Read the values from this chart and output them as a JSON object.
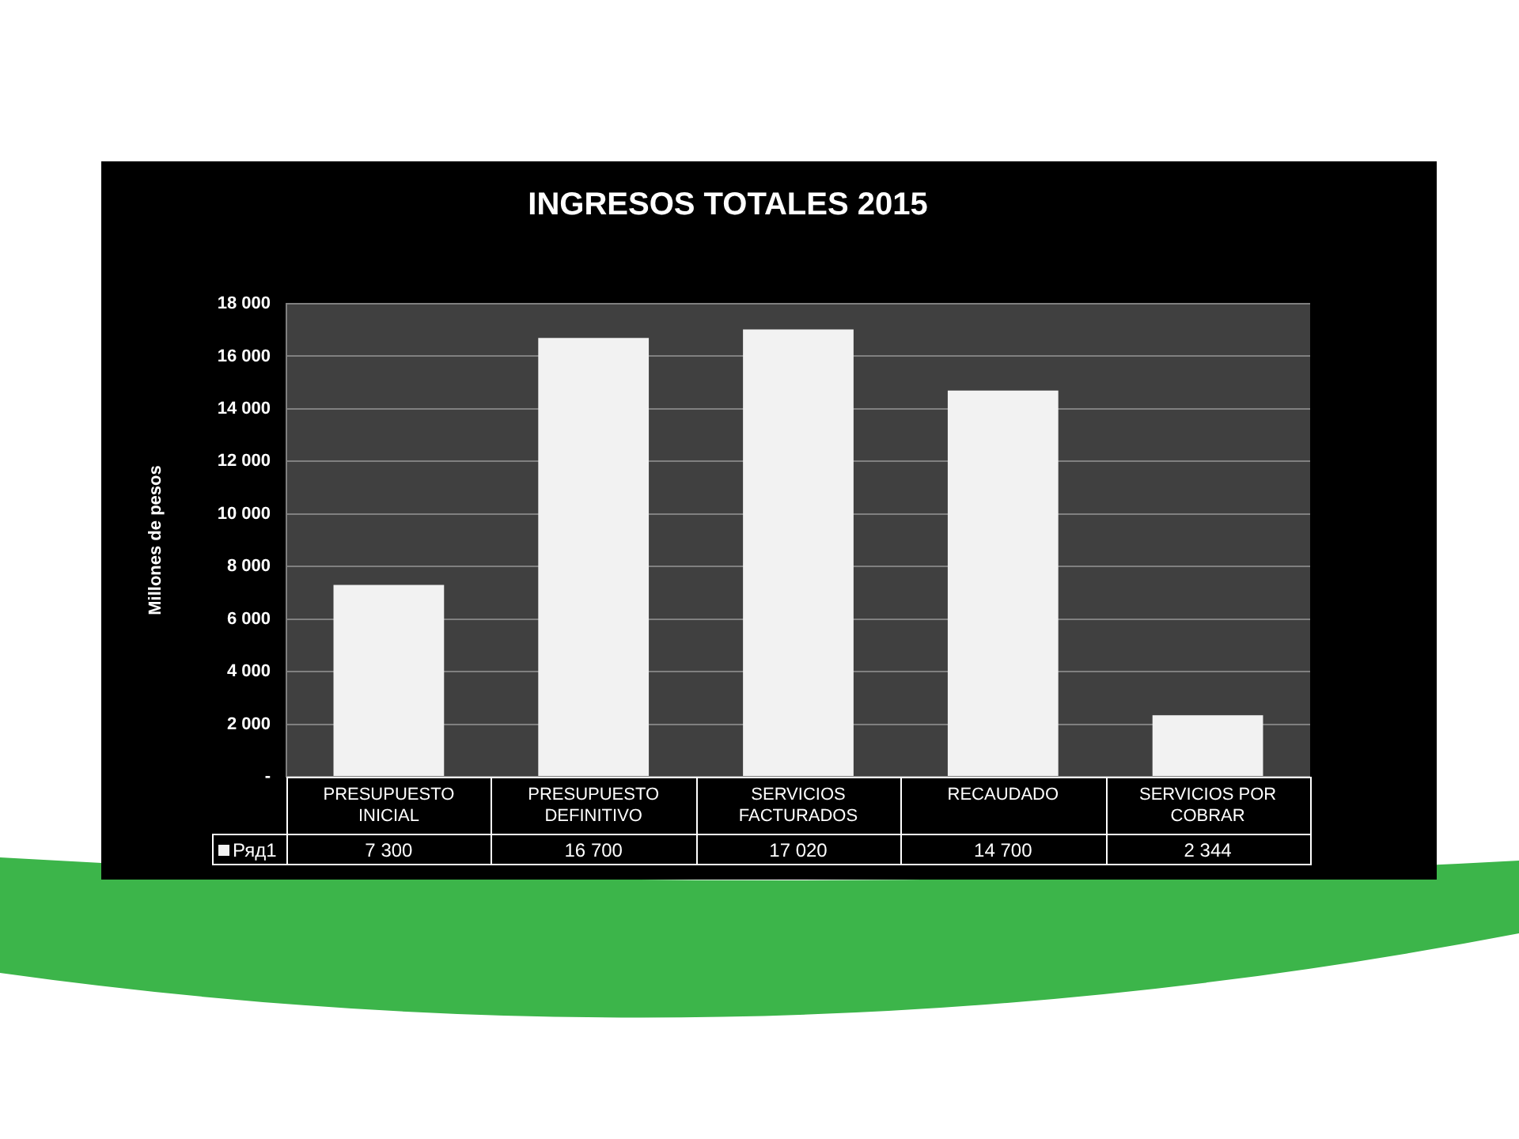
{
  "chart_data": {
    "type": "bar",
    "title": "INGRESOS TOTALES 2015",
    "ylabel": "Millones de pesos",
    "categories": [
      "PRESUPUESTO INICIAL",
      "PRESUPUESTO DEFINITIVO",
      "SERVICIOS FACTURADOS",
      "RECAUDADO",
      "SERVICIOS POR COBRAR"
    ],
    "series": [
      {
        "name": "Ряд1",
        "color": "#f2f2f2",
        "values": [
          7300,
          16700,
          17020,
          14700,
          2344
        ],
        "value_labels": [
          "7 300",
          "16 700",
          "17 020",
          "14 700",
          "2 344"
        ]
      }
    ],
    "ylim": [
      0,
      18000
    ],
    "yticks": [
      {
        "value": 0,
        "label": "-"
      },
      {
        "value": 2000,
        "label": "2 000"
      },
      {
        "value": 4000,
        "label": "4 000"
      },
      {
        "value": 6000,
        "label": "6 000"
      },
      {
        "value": 8000,
        "label": "8 000"
      },
      {
        "value": 10000,
        "label": "10 000"
      },
      {
        "value": 12000,
        "label": "12 000"
      },
      {
        "value": 14000,
        "label": "14 000"
      },
      {
        "value": 16000,
        "label": "16 000"
      },
      {
        "value": 18000,
        "label": "18 000"
      }
    ],
    "grid": "y",
    "legend": "bottom left"
  }
}
